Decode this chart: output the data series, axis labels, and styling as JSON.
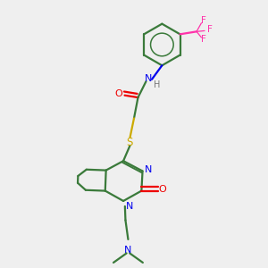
{
  "bg_color": "#efefef",
  "bond_color": "#3a7a3a",
  "N_color": "#0000ee",
  "O_color": "#ee0000",
  "S_color": "#ccaa00",
  "F_color": "#ff33aa",
  "H_color": "#777777",
  "lw": 1.6,
  "figsize": [
    3.0,
    3.0
  ],
  "dpi": 100,
  "xlim": [
    0,
    10
  ],
  "ylim": [
    0,
    10
  ]
}
